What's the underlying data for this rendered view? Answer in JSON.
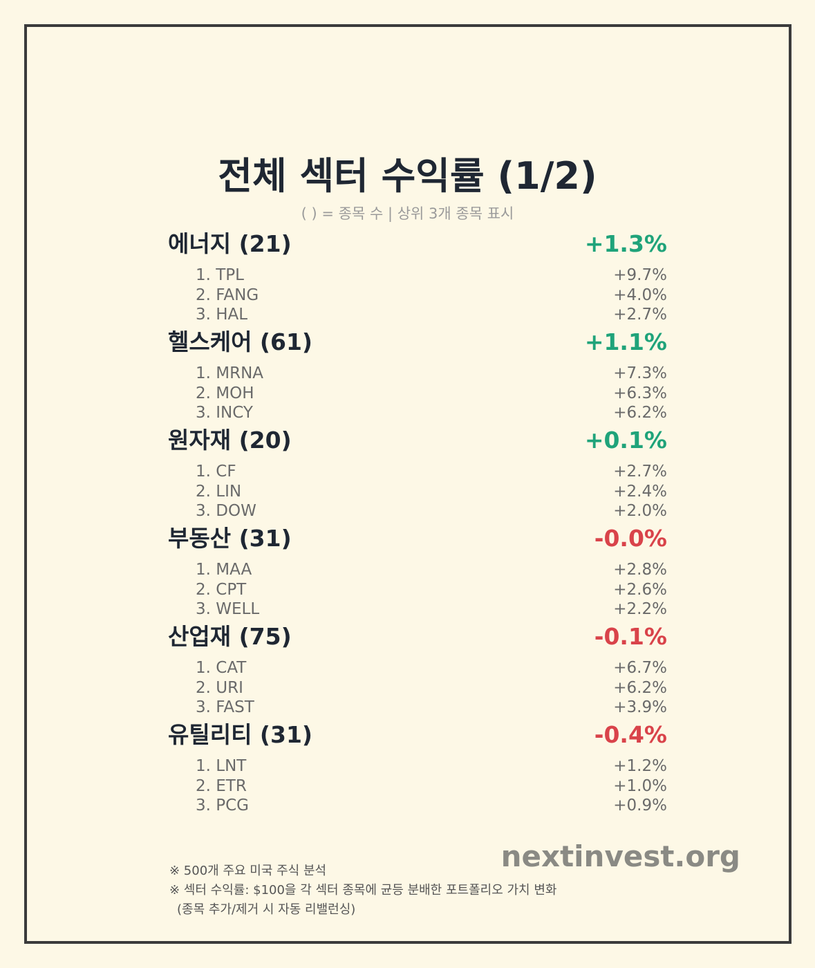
{
  "header": {
    "title": "전체 섹터 수익률 (1/2)",
    "subtitle": "( ) = 종목 수 | 상위 3개 종목 표시"
  },
  "colors": {
    "positive": "#1fa37a",
    "negative": "#d9434a"
  },
  "sectors": [
    {
      "name": "에너지 (21)",
      "return": "+1.3%",
      "stocks": [
        {
          "label": "1. TPL",
          "return": "+9.7%"
        },
        {
          "label": "2. FANG",
          "return": "+4.0%"
        },
        {
          "label": "3. HAL",
          "return": "+2.7%"
        }
      ]
    },
    {
      "name": "헬스케어 (61)",
      "return": "+1.1%",
      "stocks": [
        {
          "label": "1. MRNA",
          "return": "+7.3%"
        },
        {
          "label": "2. MOH",
          "return": "+6.3%"
        },
        {
          "label": "3. INCY",
          "return": "+6.2%"
        }
      ]
    },
    {
      "name": "원자재 (20)",
      "return": "+0.1%",
      "stocks": [
        {
          "label": "1. CF",
          "return": "+2.7%"
        },
        {
          "label": "2. LIN",
          "return": "+2.4%"
        },
        {
          "label": "3. DOW",
          "return": "+2.0%"
        }
      ]
    },
    {
      "name": "부동산 (31)",
      "return": "-0.0%",
      "stocks": [
        {
          "label": "1. MAA",
          "return": "+2.8%"
        },
        {
          "label": "2. CPT",
          "return": "+2.6%"
        },
        {
          "label": "3. WELL",
          "return": "+2.2%"
        }
      ]
    },
    {
      "name": "산업재 (75)",
      "return": "-0.1%",
      "stocks": [
        {
          "label": "1. CAT",
          "return": "+6.7%"
        },
        {
          "label": "2. URI",
          "return": "+6.2%"
        },
        {
          "label": "3. FAST",
          "return": "+3.9%"
        }
      ]
    },
    {
      "name": "유틸리티 (31)",
      "return": "-0.4%",
      "stocks": [
        {
          "label": "1. LNT",
          "return": "+1.2%"
        },
        {
          "label": "2. ETR",
          "return": "+1.0%"
        },
        {
          "label": "3. PCG",
          "return": "+0.9%"
        }
      ]
    }
  ],
  "footer": {
    "notes": [
      "※ 500개 주요 미국 주식 분석",
      "※ 섹터 수익률: $100을 각 섹터 종목에 균등 분배한 포트폴리오 가치 변화",
      "(종목 추가/제거 시 자동 리밸런싱)"
    ],
    "brand": "nextinvest.org"
  }
}
